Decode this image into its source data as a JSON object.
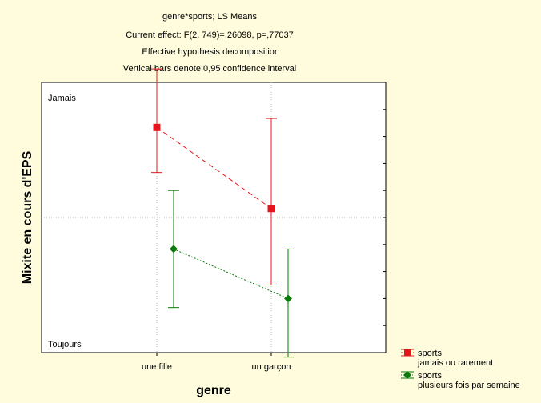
{
  "chart_data": {
    "type": "line",
    "title_lines": [
      "genre*sports; LS Means",
      "Current effect: F(2, 749)=,26098, p=,77037",
      "Effective hypothesis decompositior",
      "Vertical bars denote 0,95 confidence interval"
    ],
    "xlabel": "genre",
    "ylabel": "Mixite en cours d'EPS",
    "categories": [
      "une fille",
      "un garçon"
    ],
    "y_top_label": "Jamais",
    "y_bottom_label": "Toujours",
    "ylim": [
      1,
      4
    ],
    "grid": true,
    "legend_position": "bottom-right",
    "series": [
      {
        "name_line1": "sports",
        "name_line2": "jamais ou rarement",
        "color": "#e8141c",
        "marker": "square",
        "line_style": "dashed",
        "values": [
          3.5,
          2.6
        ],
        "ci_low": [
          3.0,
          1.75
        ],
        "ci_high": [
          4.15,
          3.6
        ]
      },
      {
        "name_line1": "sports",
        "name_line2": "plusieurs fois par semaine",
        "color": "#0a7a0a",
        "marker": "diamond",
        "line_style": "dotted",
        "values": [
          2.15,
          1.6
        ],
        "ci_low": [
          1.5,
          0.95
        ],
        "ci_high": [
          2.8,
          2.15
        ]
      }
    ]
  }
}
